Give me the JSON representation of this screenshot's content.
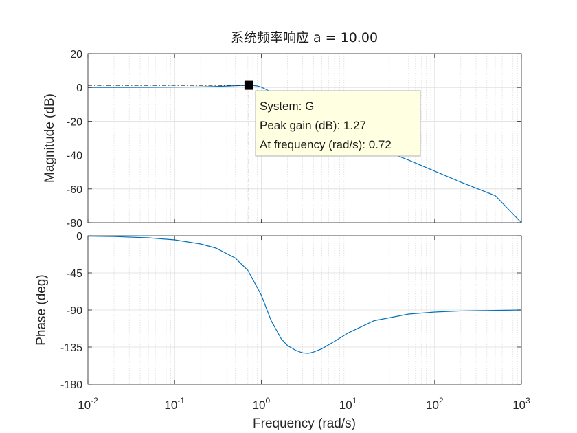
{
  "chart_data": {
    "type": "line",
    "title": "系统频率响应 a = 10.00",
    "xlabel": "Frequency  (rad/s)",
    "x_scale": "log",
    "x_ticks": [
      "10^-2",
      "10^-1",
      "10^0",
      "10^1",
      "10^2",
      "10^3"
    ],
    "x_tick_labels": [
      {
        "base": "10",
        "exp": "-2"
      },
      {
        "base": "10",
        "exp": "-1"
      },
      {
        "base": "10",
        "exp": "0"
      },
      {
        "base": "10",
        "exp": "1"
      },
      {
        "base": "10",
        "exp": "2"
      },
      {
        "base": "10",
        "exp": "3"
      }
    ],
    "xlim": [
      0.01,
      1000
    ],
    "grid": true,
    "line_color": "#0072BD",
    "panels": [
      {
        "name": "magnitude",
        "ylabel": "Magnitude (dB)",
        "ylim": [
          -80,
          20
        ],
        "yticks": [
          20,
          0,
          -20,
          -40,
          -60,
          -80
        ],
        "series": [
          {
            "x": [
              0.01,
              0.02,
              0.05,
              0.1,
              0.2,
              0.3,
              0.4,
              0.5,
              0.6,
              0.7,
              0.72,
              0.8,
              0.9,
              1.0,
              1.2,
              1.5,
              2,
              3,
              5,
              10,
              20,
              50,
              100,
              200,
              500,
              1000
            ],
            "y": [
              0.0,
              0.01,
              0.05,
              0.15,
              0.35,
              0.6,
              0.85,
              1.05,
              1.2,
              1.26,
              1.27,
              1.2,
              0.9,
              0.2,
              -1.8,
              -5.5,
              -10,
              -16,
              -22,
              -28.5,
              -35,
              -43,
              -49.5,
              -56,
              -64,
              -80
            ]
          }
        ],
        "datatip": {
          "system_label": "System: G",
          "line1": "Peak gain (dB): 1.27",
          "line2": "At frequency (rad/s): 0.72",
          "x": 0.72,
          "y": 1.27,
          "bg_color": "#FFFFE1"
        }
      },
      {
        "name": "phase",
        "ylabel": "Phase (deg)",
        "ylim": [
          -180,
          0
        ],
        "yticks": [
          0,
          -45,
          -90,
          -135,
          -180
        ],
        "series": [
          {
            "x": [
              0.01,
              0.02,
              0.05,
              0.1,
              0.2,
              0.3,
              0.5,
              0.7,
              1.0,
              1.3,
              1.7,
              2,
              2.5,
              3,
              3.5,
              4,
              5,
              7,
              10,
              20,
              50,
              100,
              200,
              500,
              1000
            ],
            "y": [
              -0.5,
              -1,
              -2.5,
              -5,
              -10,
              -15,
              -27,
              -42,
              -72,
              -103,
              -125,
              -133,
              -139,
              -142,
              -142.5,
              -141,
              -137,
              -128,
              -118,
              -103,
              -95,
              -92.5,
              -91.2,
              -90.5,
              -90
            ]
          }
        ]
      }
    ]
  }
}
